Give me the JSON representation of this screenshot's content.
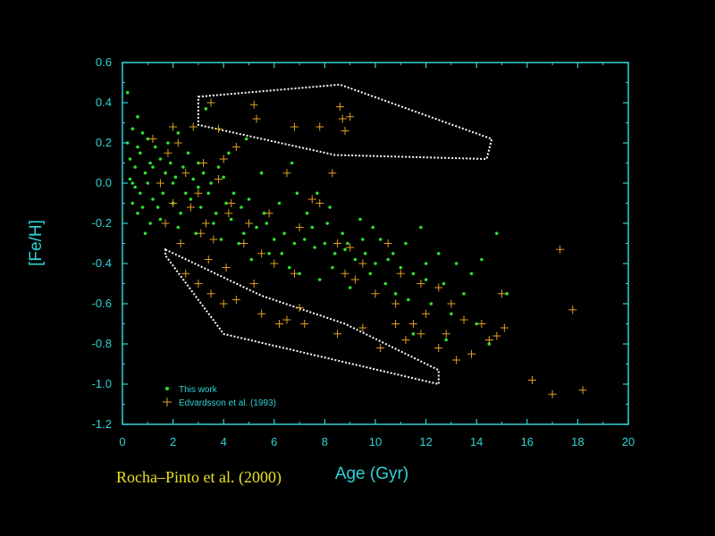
{
  "credit": "Rocha–Pinto et al. (2000)",
  "colors": {
    "axis": "#2fd3d6",
    "this_work": "#2ee02e",
    "edvardsson": "#e0a020",
    "envelope": "#ffffff",
    "background": "#000000"
  },
  "chart_data": {
    "type": "scatter",
    "xlabel": "Age (Gyr)",
    "ylabel": "[Fe/H]",
    "xlim": [
      0,
      20
    ],
    "ylim": [
      -1.2,
      0.6
    ],
    "xticks": [
      "0",
      "2",
      "4",
      "6",
      "8",
      "10",
      "12",
      "14",
      "16",
      "18",
      "20"
    ],
    "yticks": [
      "0.6",
      "0.4",
      "0.2",
      "0.0",
      "-0.2",
      "-0.4",
      "-0.6",
      "-0.8",
      "-1.0",
      "-1.2"
    ],
    "legend_position": "bottom-left",
    "series": [
      {
        "name": "This work",
        "marker": "dot",
        "points": [
          [
            0.2,
            0.45
          ],
          [
            0.4,
            0.27
          ],
          [
            0.6,
            0.33
          ],
          [
            0.8,
            0.25
          ],
          [
            1.0,
            0.22
          ],
          [
            1.3,
            0.18
          ],
          [
            0.3,
            0.12
          ],
          [
            0.5,
            0.08
          ],
          [
            0.7,
            0.15
          ],
          [
            0.9,
            0.05
          ],
          [
            0.3,
            0.02
          ],
          [
            0.5,
            -0.02
          ],
          [
            0.7,
            -0.05
          ],
          [
            1.0,
            0.0
          ],
          [
            1.2,
            0.08
          ],
          [
            1.5,
            0.12
          ],
          [
            1.7,
            0.05
          ],
          [
            1.9,
            0.1
          ],
          [
            2.1,
            0.03
          ],
          [
            2.4,
            0.08
          ],
          [
            2.6,
            0.15
          ],
          [
            2.8,
            0.02
          ],
          [
            3.0,
            0.1
          ],
          [
            3.2,
            0.05
          ],
          [
            3.5,
            0.0
          ],
          [
            3.8,
            0.08
          ],
          [
            4.0,
            0.03
          ],
          [
            0.4,
            -0.1
          ],
          [
            0.8,
            -0.12
          ],
          [
            1.2,
            -0.08
          ],
          [
            1.6,
            -0.05
          ],
          [
            2.0,
            -0.1
          ],
          [
            2.3,
            -0.15
          ],
          [
            2.7,
            -0.08
          ],
          [
            3.1,
            -0.12
          ],
          [
            3.4,
            -0.05
          ],
          [
            3.7,
            -0.15
          ],
          [
            4.1,
            -0.1
          ],
          [
            4.4,
            -0.05
          ],
          [
            4.7,
            -0.12
          ],
          [
            5.0,
            -0.08
          ],
          [
            1.1,
            -0.2
          ],
          [
            1.5,
            -0.18
          ],
          [
            2.2,
            -0.22
          ],
          [
            2.9,
            -0.25
          ],
          [
            3.6,
            -0.2
          ],
          [
            4.3,
            -0.18
          ],
          [
            4.8,
            -0.25
          ],
          [
            5.3,
            -0.22
          ],
          [
            5.7,
            -0.2
          ],
          [
            6.0,
            -0.28
          ],
          [
            6.4,
            -0.25
          ],
          [
            6.8,
            -0.3
          ],
          [
            7.2,
            -0.28
          ],
          [
            7.6,
            -0.32
          ],
          [
            8.0,
            -0.3
          ],
          [
            8.4,
            -0.35
          ],
          [
            8.8,
            -0.33
          ],
          [
            9.2,
            -0.38
          ],
          [
            9.6,
            -0.35
          ],
          [
            10.0,
            -0.4
          ],
          [
            10.5,
            -0.38
          ],
          [
            11.0,
            -0.42
          ],
          [
            11.5,
            -0.45
          ],
          [
            12.0,
            -0.48
          ],
          [
            3.3,
            0.37
          ],
          [
            4.9,
            0.22
          ],
          [
            5.5,
            0.05
          ],
          [
            6.2,
            -0.1
          ],
          [
            6.9,
            -0.05
          ],
          [
            7.3,
            -0.15
          ],
          [
            8.1,
            -0.2
          ],
          [
            8.7,
            -0.25
          ],
          [
            9.4,
            -0.18
          ],
          [
            10.2,
            -0.28
          ],
          [
            11.2,
            -0.3
          ],
          [
            11.8,
            -0.22
          ],
          [
            12.5,
            -0.35
          ],
          [
            13.2,
            -0.4
          ],
          [
            13.8,
            -0.45
          ],
          [
            14.2,
            -0.38
          ],
          [
            14.8,
            -0.25
          ],
          [
            15.2,
            -0.55
          ],
          [
            6.6,
            -0.42
          ],
          [
            7.8,
            -0.48
          ],
          [
            9.0,
            -0.52
          ],
          [
            10.8,
            -0.55
          ],
          [
            12.2,
            -0.6
          ],
          [
            13.0,
            -0.65
          ],
          [
            14.0,
            -0.7
          ],
          [
            11.5,
            -0.75
          ],
          [
            12.8,
            -0.78
          ],
          [
            14.5,
            -0.8
          ],
          [
            5.1,
            -0.38
          ],
          [
            5.8,
            -0.35
          ],
          [
            4.6,
            -0.3
          ],
          [
            3.9,
            -0.28
          ],
          [
            2.5,
            -0.05
          ],
          [
            1.8,
            0.2
          ],
          [
            2.2,
            0.25
          ],
          [
            1.4,
            -0.12
          ],
          [
            0.9,
            -0.25
          ],
          [
            0.6,
            0.18
          ],
          [
            0.4,
            0.0
          ],
          [
            0.2,
            0.2
          ],
          [
            0.6,
            -0.15
          ],
          [
            1.1,
            0.1
          ],
          [
            2.0,
            0.0
          ],
          [
            3.0,
            -0.02
          ],
          [
            4.2,
            0.15
          ],
          [
            5.6,
            -0.15
          ],
          [
            6.3,
            -0.35
          ],
          [
            7.0,
            -0.45
          ],
          [
            8.3,
            -0.42
          ],
          [
            9.8,
            -0.45
          ],
          [
            10.4,
            -0.5
          ],
          [
            11.3,
            -0.58
          ],
          [
            12.0,
            -0.4
          ],
          [
            12.7,
            -0.5
          ],
          [
            13.5,
            -0.55
          ],
          [
            7.5,
            -0.22
          ],
          [
            8.9,
            -0.3
          ],
          [
            9.5,
            -0.28
          ],
          [
            6.7,
            0.1
          ],
          [
            7.7,
            -0.05
          ],
          [
            8.2,
            -0.12
          ],
          [
            9.9,
            -0.22
          ],
          [
            10.7,
            -0.35
          ]
        ]
      },
      {
        "name": "Edvardsson et al. (1993)",
        "marker": "plus",
        "points": [
          [
            3.5,
            0.4
          ],
          [
            5.2,
            0.39
          ],
          [
            8.6,
            0.38
          ],
          [
            8.7,
            0.32
          ],
          [
            9.0,
            0.33
          ],
          [
            8.8,
            0.26
          ],
          [
            6.8,
            0.28
          ],
          [
            7.8,
            0.28
          ],
          [
            5.3,
            0.32
          ],
          [
            3.8,
            0.27
          ],
          [
            2.8,
            0.28
          ],
          [
            2.2,
            0.2
          ],
          [
            1.8,
            0.15
          ],
          [
            2.5,
            0.05
          ],
          [
            3.2,
            0.1
          ],
          [
            4.0,
            0.12
          ],
          [
            4.5,
            0.18
          ],
          [
            3.0,
            -0.05
          ],
          [
            2.0,
            -0.1
          ],
          [
            1.5,
            0.0
          ],
          [
            2.7,
            -0.12
          ],
          [
            3.3,
            -0.2
          ],
          [
            3.6,
            -0.28
          ],
          [
            3.1,
            -0.25
          ],
          [
            4.2,
            -0.15
          ],
          [
            4.8,
            -0.3
          ],
          [
            5.5,
            -0.35
          ],
          [
            6.0,
            -0.4
          ],
          [
            6.5,
            0.05
          ],
          [
            7.5,
            -0.08
          ],
          [
            7.0,
            -0.22
          ],
          [
            8.5,
            -0.3
          ],
          [
            9.0,
            -0.32
          ],
          [
            8.8,
            -0.45
          ],
          [
            9.2,
            -0.48
          ],
          [
            10.0,
            -0.55
          ],
          [
            10.5,
            -0.3
          ],
          [
            11.0,
            -0.45
          ],
          [
            11.8,
            -0.5
          ],
          [
            12.5,
            -0.52
          ],
          [
            13.0,
            -0.6
          ],
          [
            13.5,
            -0.68
          ],
          [
            14.2,
            -0.7
          ],
          [
            14.8,
            -0.76
          ],
          [
            15.0,
            -0.55
          ],
          [
            15.1,
            -0.72
          ],
          [
            11.5,
            -0.7
          ],
          [
            11.8,
            -0.75
          ],
          [
            10.8,
            -0.7
          ],
          [
            9.5,
            -0.72
          ],
          [
            8.5,
            -0.75
          ],
          [
            7.2,
            -0.7
          ],
          [
            6.5,
            -0.68
          ],
          [
            5.5,
            -0.65
          ],
          [
            4.0,
            -0.6
          ],
          [
            3.5,
            -0.55
          ],
          [
            4.5,
            -0.58
          ],
          [
            2.5,
            -0.45
          ],
          [
            3.0,
            -0.5
          ],
          [
            7.0,
            -0.62
          ],
          [
            12.5,
            -0.82
          ],
          [
            13.2,
            -0.88
          ],
          [
            13.8,
            -0.85
          ],
          [
            14.5,
            -0.78
          ],
          [
            16.2,
            -0.98
          ],
          [
            17.0,
            -1.05
          ],
          [
            18.2,
            -1.03
          ],
          [
            17.3,
            -0.33
          ],
          [
            17.8,
            -0.63
          ],
          [
            5.2,
            -0.5
          ],
          [
            6.8,
            -0.45
          ],
          [
            10.2,
            -0.82
          ],
          [
            11.2,
            -0.78
          ],
          [
            12.8,
            -0.75
          ],
          [
            1.2,
            0.22
          ],
          [
            2.0,
            0.28
          ],
          [
            3.8,
            0.02
          ],
          [
            4.3,
            -0.1
          ],
          [
            5.0,
            -0.2
          ],
          [
            5.8,
            -0.15
          ],
          [
            7.8,
            -0.1
          ],
          [
            8.3,
            0.05
          ],
          [
            9.5,
            -0.4
          ],
          [
            10.8,
            -0.6
          ],
          [
            12.0,
            -0.65
          ],
          [
            2.3,
            -0.3
          ],
          [
            1.7,
            -0.2
          ],
          [
            3.4,
            -0.38
          ],
          [
            4.1,
            -0.42
          ],
          [
            6.2,
            -0.7
          ]
        ]
      }
    ],
    "envelopes": [
      [
        [
          3.0,
          0.43
        ],
        [
          8.6,
          0.49
        ],
        [
          14.6,
          0.22
        ],
        [
          14.4,
          0.12
        ],
        [
          8.4,
          0.14
        ],
        [
          3.0,
          0.29
        ]
      ],
      [
        [
          1.7,
          -0.33
        ],
        [
          5.5,
          -0.56
        ],
        [
          8.8,
          -0.7
        ],
        [
          12.5,
          -0.93
        ],
        [
          12.5,
          -1.0
        ],
        [
          4.0,
          -0.75
        ],
        [
          1.7,
          -0.36
        ]
      ]
    ]
  }
}
